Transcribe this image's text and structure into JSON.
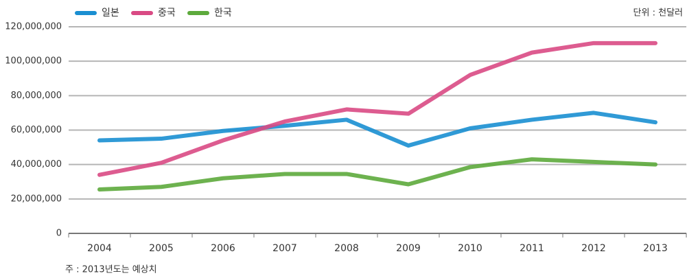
{
  "chart_data": {
    "type": "line",
    "unit_label": "단위 : 천달러",
    "note": "주 : 2013년도는 예상치",
    "categories": [
      "2004",
      "2005",
      "2006",
      "2007",
      "2008",
      "2009",
      "2010",
      "2011",
      "2012",
      "2013"
    ],
    "series": [
      {
        "name": "일본",
        "color": "#1a8fd1",
        "values": [
          54000000,
          55000000,
          59500000,
          62500000,
          66000000,
          51000000,
          61000000,
          66000000,
          70000000,
          64500000
        ]
      },
      {
        "name": "중국",
        "color": "#d94a84",
        "values": [
          34000000,
          41000000,
          54000000,
          65000000,
          72000000,
          69500000,
          92000000,
          105000000,
          110500000,
          110500000
        ]
      },
      {
        "name": "한국",
        "color": "#5daa3c",
        "values": [
          25500000,
          27000000,
          32000000,
          34500000,
          34500000,
          28500000,
          38500000,
          43000000,
          41500000,
          40000000
        ]
      }
    ],
    "ylim": [
      0,
      120000000
    ],
    "yticks": [
      0,
      {
        "value": 20000000,
        "label": "20,000,000"
      },
      {
        "value": 40000000,
        "label": "40,000,000"
      },
      {
        "value": 60000000,
        "label": "60,000,000"
      },
      {
        "value": 80000000,
        "label": "80,000,000"
      },
      {
        "value": 100000000,
        "label": "100,000,000"
      },
      {
        "value": 120000000,
        "label": "120,000,000"
      }
    ],
    "grid": true
  }
}
